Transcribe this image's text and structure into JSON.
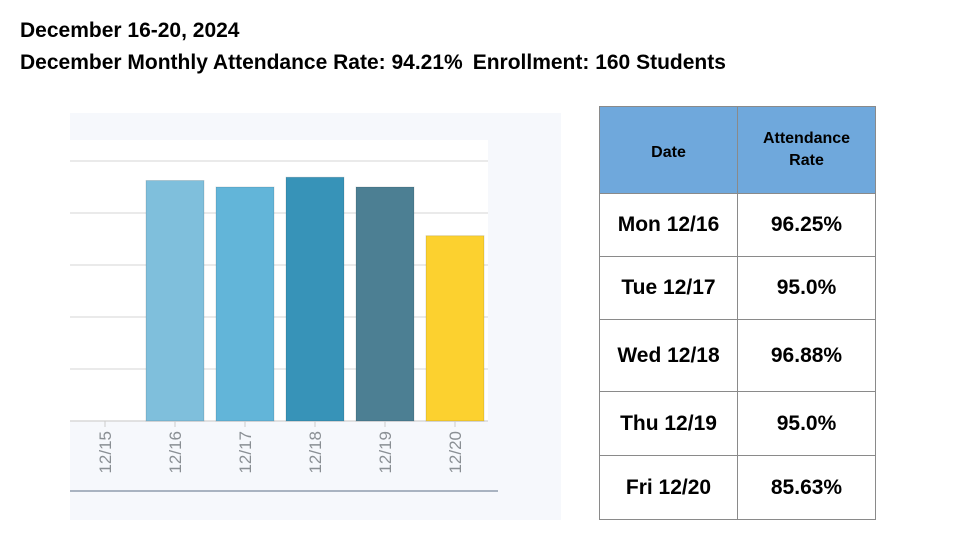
{
  "header": {
    "line1": "December 16-20, 2024",
    "line2_rate": "December Monthly Attendance Rate: 94.21%",
    "line2_enrollment": "Enrollment: 160 Students"
  },
  "table": {
    "col_date": "Date",
    "col_rate": "Attendance Rate",
    "rows": [
      {
        "date": "Mon 12/16",
        "rate": "96.25%"
      },
      {
        "date": "Tue 12/17",
        "rate": "95.0%"
      },
      {
        "date": "Wed 12/18",
        "rate": "96.88%"
      },
      {
        "date": "Thu 12/19",
        "rate": "95.0%"
      },
      {
        "date": "Fri 12/20",
        "rate": "85.63%"
      }
    ],
    "header_color": "#6fa8dc"
  },
  "chart_data": {
    "type": "bar",
    "categories": [
      "12/15",
      "12/16",
      "12/17",
      "12/18",
      "12/19",
      "12/20"
    ],
    "values": [
      null,
      96.25,
      95.0,
      96.88,
      95.0,
      85.63
    ],
    "colors": [
      "#7fbfdc",
      "#7fbfdc",
      "#62b5d9",
      "#3793b8",
      "#4c7f93",
      "#fcd12f"
    ],
    "ylim": [
      50,
      100
    ],
    "grid": true,
    "title": "",
    "xlabel": "",
    "ylabel": ""
  }
}
